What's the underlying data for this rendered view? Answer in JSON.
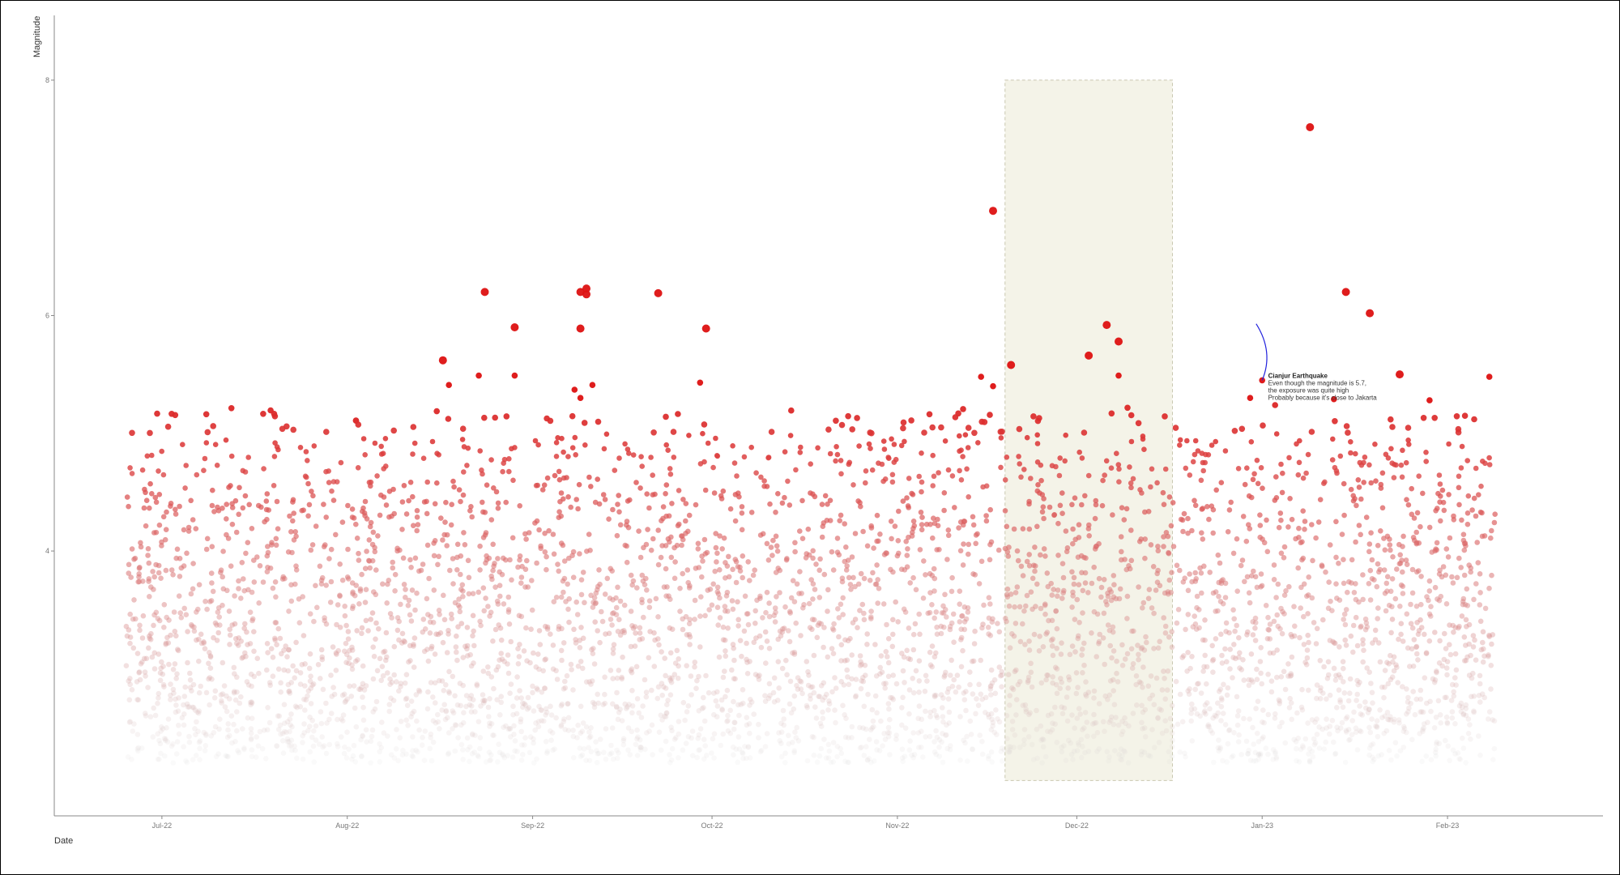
{
  "chart_data": {
    "type": "scatter",
    "xlabel": "Date",
    "ylabel": "Magnitude",
    "x_range": [
      "2022-06-13",
      "2023-02-27"
    ],
    "ylim": [
      1.75,
      8.55
    ],
    "x_ticks": [
      {
        "date": "2022-07-01",
        "label": "Jul-22"
      },
      {
        "date": "2022-08-01",
        "label": "Aug-22"
      },
      {
        "date": "2022-09-01",
        "label": "Sep-22"
      },
      {
        "date": "2022-10-01",
        "label": "Oct-22"
      },
      {
        "date": "2022-11-01",
        "label": "Nov-22"
      },
      {
        "date": "2022-12-01",
        "label": "Dec-22"
      },
      {
        "date": "2023-01-01",
        "label": "Jan-23"
      },
      {
        "date": "2023-02-01",
        "label": "Feb-23"
      }
    ],
    "y_ticks": [
      4,
      6,
      8
    ],
    "grid": false,
    "color_low": "#d8d4d4",
    "color_high": "#dd1111",
    "highlight": {
      "x_start": "2022-11-19",
      "x_end": "2022-12-17",
      "y_start": 2.05,
      "y_end": 8.0,
      "fill": "#f4f3e8",
      "stroke": "#c9c8b0"
    },
    "annotation": {
      "title": "Cianjur Earthquake",
      "lines": [
        "Even though the magnitude is 5.7,",
        "the exposure was quite high",
        "Probably because it's      close to Jakarta"
      ],
      "x": "2023-01-02",
      "y": 5.47,
      "arrow_color": "#2222dd",
      "arrow_from": {
        "x": "2022-12-31",
        "y": 5.93
      },
      "arrow_to": {
        "x": "2023-01-01",
        "y": 5.45
      }
    },
    "notable_points": [
      {
        "date": "2022-08-17",
        "magnitude": 5.62
      },
      {
        "date": "2022-08-18",
        "magnitude": 5.41
      },
      {
        "date": "2022-08-23",
        "magnitude": 5.49
      },
      {
        "date": "2022-08-24",
        "magnitude": 6.2
      },
      {
        "date": "2022-08-29",
        "magnitude": 5.9
      },
      {
        "date": "2022-08-29",
        "magnitude": 5.49
      },
      {
        "date": "2022-09-08",
        "magnitude": 5.37
      },
      {
        "date": "2022-09-09",
        "magnitude": 6.2
      },
      {
        "date": "2022-09-09",
        "magnitude": 5.89
      },
      {
        "date": "2022-09-09",
        "magnitude": 5.3
      },
      {
        "date": "2022-09-10",
        "magnitude": 6.23
      },
      {
        "date": "2022-09-10",
        "magnitude": 6.18
      },
      {
        "date": "2022-09-11",
        "magnitude": 5.41
      },
      {
        "date": "2022-09-22",
        "magnitude": 6.19
      },
      {
        "date": "2022-09-29",
        "magnitude": 5.43
      },
      {
        "date": "2022-09-30",
        "magnitude": 5.89
      },
      {
        "date": "2022-11-15",
        "magnitude": 5.48
      },
      {
        "date": "2022-11-17",
        "magnitude": 6.89
      },
      {
        "date": "2022-11-17",
        "magnitude": 5.4
      },
      {
        "date": "2022-11-20",
        "magnitude": 5.58
      },
      {
        "date": "2022-12-03",
        "magnitude": 5.66
      },
      {
        "date": "2022-12-06",
        "magnitude": 5.92
      },
      {
        "date": "2022-12-08",
        "magnitude": 5.78
      },
      {
        "date": "2022-12-08",
        "magnitude": 5.49
      },
      {
        "date": "2022-12-30",
        "magnitude": 5.3
      },
      {
        "date": "2023-01-01",
        "magnitude": 5.45
      },
      {
        "date": "2023-01-09",
        "magnitude": 7.6
      },
      {
        "date": "2023-01-13",
        "magnitude": 5.29
      },
      {
        "date": "2023-01-15",
        "magnitude": 6.2
      },
      {
        "date": "2023-01-19",
        "magnitude": 6.02
      },
      {
        "date": "2023-01-24",
        "magnitude": 5.5
      },
      {
        "date": "2023-01-29",
        "magnitude": 5.28
      },
      {
        "date": "2023-02-08",
        "magnitude": 5.48
      }
    ],
    "background_series": {
      "description_note": "",
      "date_start": "2022-06-25",
      "date_end": "2023-02-09",
      "magnitude_min": 2.2,
      "magnitude_max": 5.25,
      "approx_count": 4500
    }
  }
}
